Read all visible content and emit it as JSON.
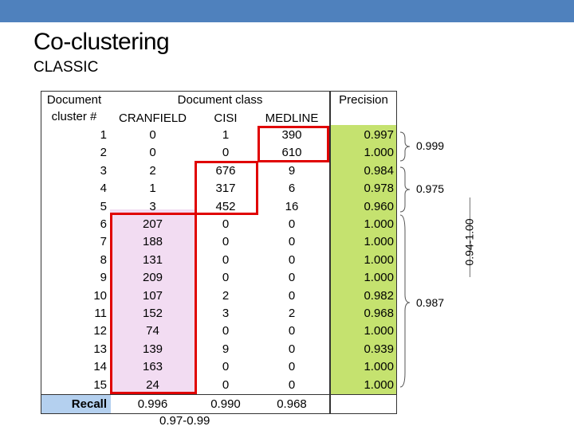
{
  "title": "Co-clustering",
  "subtitle": "CLASSIC",
  "header": {
    "doc_cluster_line1": "Document",
    "doc_cluster_line2": "cluster #",
    "doc_class": "Document class",
    "cols": [
      "CRANFIELD",
      "CISI",
      "MEDLINE"
    ],
    "precision": "Precision"
  },
  "rows": [
    {
      "cluster": "1",
      "cran": "0",
      "cisi": "1",
      "med": "390",
      "prec": "0.997"
    },
    {
      "cluster": "2",
      "cran": "0",
      "cisi": "0",
      "med": "610",
      "prec": "1.000"
    },
    {
      "cluster": "3",
      "cran": "2",
      "cisi": "676",
      "med": "9",
      "prec": "0.984"
    },
    {
      "cluster": "4",
      "cran": "1",
      "cisi": "317",
      "med": "6",
      "prec": "0.978"
    },
    {
      "cluster": "5",
      "cran": "3",
      "cisi": "452",
      "med": "16",
      "prec": "0.960"
    },
    {
      "cluster": "6",
      "cran": "207",
      "cisi": "0",
      "med": "0",
      "prec": "1.000"
    },
    {
      "cluster": "7",
      "cran": "188",
      "cisi": "0",
      "med": "0",
      "prec": "1.000"
    },
    {
      "cluster": "8",
      "cran": "131",
      "cisi": "0",
      "med": "0",
      "prec": "1.000"
    },
    {
      "cluster": "9",
      "cran": "209",
      "cisi": "0",
      "med": "0",
      "prec": "1.000"
    },
    {
      "cluster": "10",
      "cran": "107",
      "cisi": "2",
      "med": "0",
      "prec": "0.982"
    },
    {
      "cluster": "11",
      "cran": "152",
      "cisi": "3",
      "med": "2",
      "prec": "0.968"
    },
    {
      "cluster": "12",
      "cran": "74",
      "cisi": "0",
      "med": "0",
      "prec": "1.000"
    },
    {
      "cluster": "13",
      "cran": "139",
      "cisi": "9",
      "med": "0",
      "prec": "0.939"
    },
    {
      "cluster": "14",
      "cran": "163",
      "cisi": "0",
      "med": "0",
      "prec": "1.000"
    },
    {
      "cluster": "15",
      "cran": "24",
      "cisi": "0",
      "med": "0",
      "prec": "1.000"
    }
  ],
  "recall": {
    "label": "Recall",
    "cran": "0.996",
    "cisi": "0.990",
    "med": "0.968"
  },
  "annotations": {
    "brace1": "0.999",
    "brace2": "0.975",
    "brace3": "0.987",
    "vertical": "0.94-1.00",
    "bottom": "0.97-0.99"
  },
  "colors": {
    "topbar": "#4f81bd",
    "pink": "#f2dcf2",
    "green": "#c5e26f",
    "recall": "#b4d0ef",
    "red": "#e00000"
  }
}
